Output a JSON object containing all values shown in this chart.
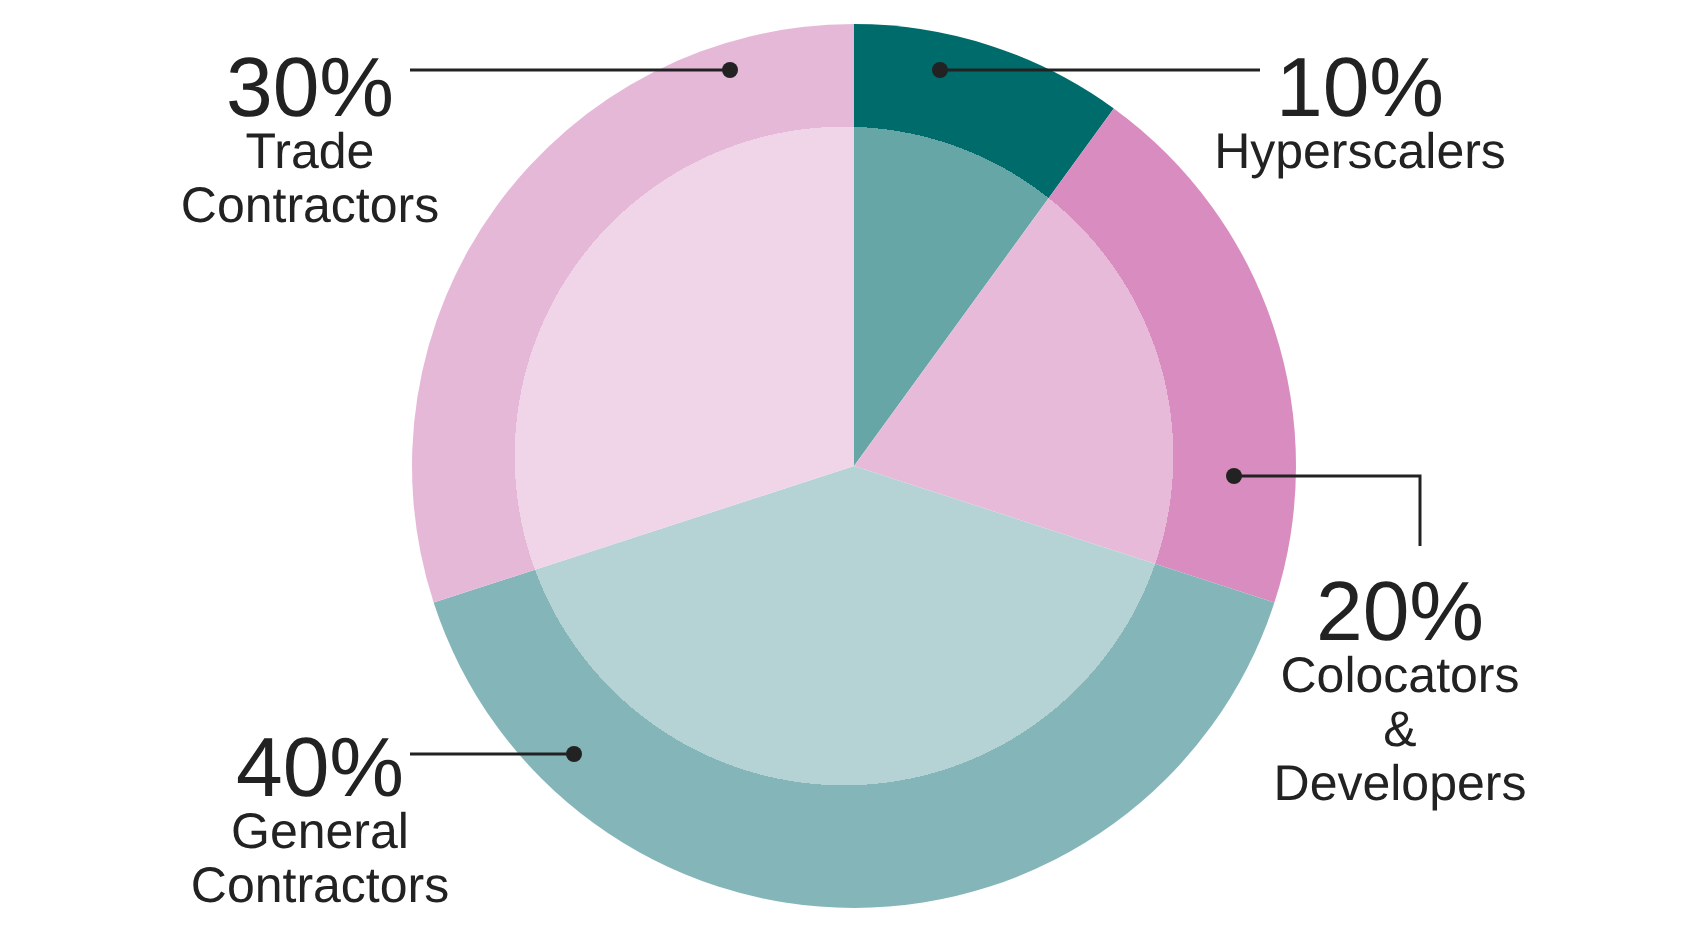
{
  "chart_data": {
    "type": "pie",
    "categories": [
      "Hyperscalers",
      "Colocators & Developers",
      "General Contractors",
      "Trade Contractors"
    ],
    "values": [
      10,
      20,
      40,
      30
    ],
    "colors": [
      "#006b6b",
      "#d98cbf",
      "#84b5b8",
      "#e6b8d8"
    ],
    "value_labels": [
      "10%",
      "20%",
      "40%",
      "30%"
    ]
  }
}
